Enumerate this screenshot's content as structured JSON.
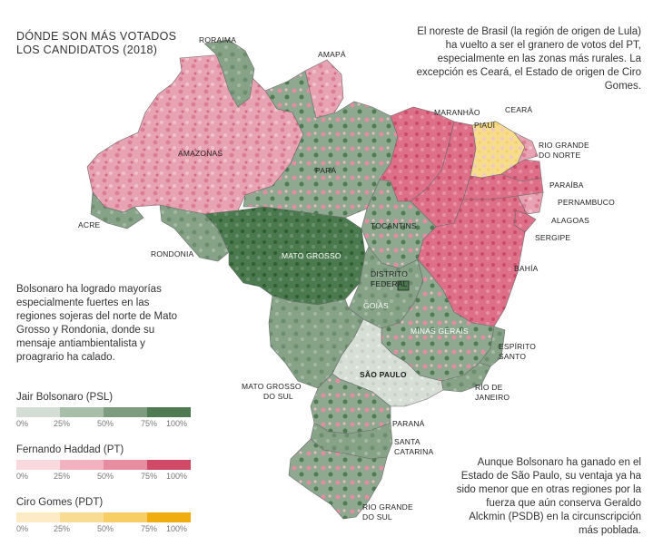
{
  "title": "DÓNDE SON MÁS VOTADOS\nLOS CANDIDATOS (2018)",
  "title_line1": "DÓNDE SON MÁS VOTADOS",
  "title_line2": "LOS CANDIDATOS (2018)",
  "notes": {
    "northeast": "El noreste de Brasil (la región de origen de Lula) ha vuelto a ser el granero de votos del PT, especialmente en las zonas más rurales. La excepción es Ceará, el Estado de origen de Ciro Gomes.",
    "center_west": "Bolsonaro ha logrado mayorías especialmente fuertes en las regiones sojeras del norte de Mato Grosso y Rondonia, donde su mensaje antiambientalista y proagrario ha calado.",
    "sao_paulo": "Aunque Bolsonaro ha ganado en el Estado de São Paulo, su ventaja ya ha sido menor que en otras regiones por la fuerza que aún conserva Geraldo Alckmin (PSDB) en la circunscripción más poblada."
  },
  "states": {
    "roraima": "RORAIMA",
    "amapa": "AMAPÁ",
    "amazonas": "AMAZONAS",
    "para": "PARÁ",
    "acre": "ACRE",
    "rondonia": "RONDONIA",
    "mato_grosso": "MATO GROSSO",
    "maranhao": "MARANHÃO",
    "piaui": "PIAUÍ",
    "ceara": "CEARÁ",
    "rio_grande_do_norte_1": "RIO GRANDE",
    "rio_grande_do_norte_2": "DO NORTE",
    "paraiba": "PARAÍBA",
    "pernambuco": "PERNAMBUCO",
    "alagoas": "ALAGOAS",
    "sergipe": "SERGIPE",
    "bahia": "BAHÍA",
    "tocantins": "TOCANTINS",
    "distrito_federal_1": "DISTRITO",
    "distrito_federal_2": "FEDERAL",
    "goias": "GOIÁS",
    "minas_gerais": "MINAS GERAIS",
    "espirito_santo_1": "ESPÍRITO",
    "espirito_santo_2": "SANTO",
    "rio_de_janeiro_1": "RÍO DE",
    "rio_de_janeiro_2": "JANEIRO",
    "sao_paulo": "SÃO PAULO",
    "mato_grosso_do_sul_1": "MATO GROSSO",
    "mato_grosso_do_sul_2": "DO SUL",
    "parana": "PARANÁ",
    "santa_catarina_1": "SANTA",
    "santa_catarina_2": "CATARINA",
    "rio_grande_do_sul_1": "RIO GRANDE",
    "rio_grande_do_sul_2": "DO SUL"
  },
  "legend": [
    {
      "label": "Jair Bolsonaro (PSL)",
      "colors": [
        "#d3ddd4",
        "#a9bea9",
        "#7d9c7f",
        "#4f7a52",
        "#2b5a2f"
      ],
      "ticks": [
        "0%",
        "25%",
        "50%",
        "75%",
        "100%"
      ]
    },
    {
      "label": "Fernando Haddad (PT)",
      "colors": [
        "#f9d8de",
        "#f0b2bf",
        "#e68da1",
        "#dc6a84",
        "#cf4a67"
      ],
      "ticks": [
        "0%",
        "25%",
        "50%",
        "75%",
        "100%"
      ]
    },
    {
      "label": "Ciro Gomes (PDT)",
      "colors": [
        "#fcebc4",
        "#f9dc94",
        "#f7cd66",
        "#f4bd38",
        "#f0ad10"
      ],
      "ticks": [
        "0%",
        "25%",
        "50%",
        "75%",
        "100%"
      ]
    }
  ]
}
